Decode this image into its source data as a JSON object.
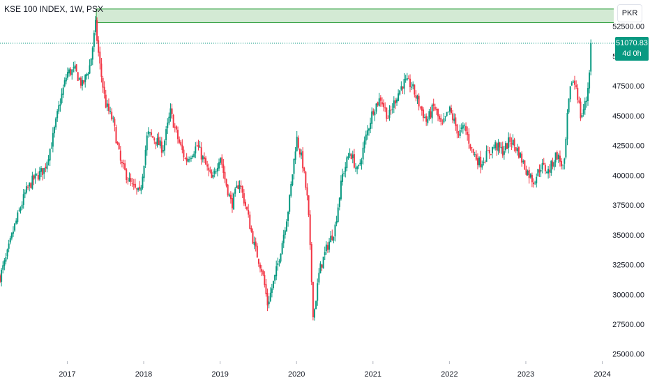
{
  "header": {
    "symbol_title": "KSE 100 INDEX, 1W, PSX"
  },
  "currency_button": {
    "label": "PKR"
  },
  "last_price": {
    "value": "51070.83",
    "countdown": "4d 0h",
    "raw": 51070.83
  },
  "colors": {
    "up": "#089981",
    "down": "#f23645",
    "zone_fill": "#d3ead4",
    "zone_stroke": "#2e9d3c",
    "badge": "#089981",
    "axis_text": "#131722",
    "price_line": "#089981"
  },
  "chart_data": {
    "type": "candlestick",
    "title": "KSE 100 INDEX, 1W, PSX",
    "xlabel": "",
    "ylabel": "",
    "ylim": [
      24400,
      54700
    ],
    "y_ticks": [
      25000,
      27500,
      30000,
      32500,
      35000,
      37500,
      40000,
      42500,
      45000,
      47500,
      50000,
      52500
    ],
    "y_tick_labels": [
      "25000.00",
      "27500.00",
      "30000.00",
      "32500.00",
      "35000.00",
      "37500.00",
      "40000.00",
      "42500.00",
      "45000.00",
      "47500.00",
      "50000.00",
      "52500.00"
    ],
    "x_ticks": [
      "2017",
      "2018",
      "2019",
      "2020",
      "2021",
      "2022",
      "2023",
      "2024"
    ],
    "x_tick_positions": [
      2017,
      2018,
      2019,
      2020,
      2021,
      2022,
      2023,
      2024
    ],
    "x_range": [
      2016.12,
      2024.15
    ],
    "grid": false,
    "resistance_zone": {
      "x_start": 2017.38,
      "low": 52800,
      "high": 53950
    },
    "last_price": 51070.83,
    "anchors": [
      [
        2016.12,
        31500
      ],
      [
        2016.2,
        33000
      ],
      [
        2016.3,
        35500
      ],
      [
        2016.45,
        38500
      ],
      [
        2016.55,
        39600
      ],
      [
        2016.7,
        40500
      ],
      [
        2016.8,
        42800
      ],
      [
        2016.9,
        46000
      ],
      [
        2017.0,
        48600
      ],
      [
        2017.1,
        48800
      ],
      [
        2017.2,
        47500
      ],
      [
        2017.3,
        49300
      ],
      [
        2017.37,
        52600
      ],
      [
        2017.42,
        49500
      ],
      [
        2017.5,
        46000
      ],
      [
        2017.6,
        44500
      ],
      [
        2017.7,
        41000
      ],
      [
        2017.85,
        39000
      ],
      [
        2017.95,
        38400
      ],
      [
        2018.05,
        43500
      ],
      [
        2018.15,
        43000
      ],
      [
        2018.25,
        42200
      ],
      [
        2018.35,
        45300
      ],
      [
        2018.45,
        43000
      ],
      [
        2018.55,
        41200
      ],
      [
        2018.7,
        42500
      ],
      [
        2018.8,
        41000
      ],
      [
        2018.9,
        39500
      ],
      [
        2019.0,
        41800
      ],
      [
        2019.05,
        40000
      ],
      [
        2019.15,
        37500
      ],
      [
        2019.25,
        39500
      ],
      [
        2019.35,
        37000
      ],
      [
        2019.45,
        34000
      ],
      [
        2019.55,
        32000
      ],
      [
        2019.62,
        29200
      ],
      [
        2019.72,
        31500
      ],
      [
        2019.8,
        34000
      ],
      [
        2019.9,
        37500
      ],
      [
        2020.0,
        43200
      ],
      [
        2020.08,
        41000
      ],
      [
        2020.15,
        37500
      ],
      [
        2020.22,
        28000
      ],
      [
        2020.3,
        32000
      ],
      [
        2020.4,
        34000
      ],
      [
        2020.5,
        35500
      ],
      [
        2020.6,
        40000
      ],
      [
        2020.7,
        42000
      ],
      [
        2020.8,
        40200
      ],
      [
        2020.9,
        43000
      ],
      [
        2021.0,
        45500
      ],
      [
        2021.1,
        46500
      ],
      [
        2021.2,
        44800
      ],
      [
        2021.3,
        46500
      ],
      [
        2021.4,
        47800
      ],
      [
        2021.5,
        47600
      ],
      [
        2021.6,
        46000
      ],
      [
        2021.7,
        44500
      ],
      [
        2021.8,
        45800
      ],
      [
        2021.9,
        44000
      ],
      [
        2022.0,
        45500
      ],
      [
        2022.12,
        43500
      ],
      [
        2022.2,
        44000
      ],
      [
        2022.3,
        42000
      ],
      [
        2022.4,
        41000
      ],
      [
        2022.5,
        41800
      ],
      [
        2022.6,
        42500
      ],
      [
        2022.7,
        42000
      ],
      [
        2022.8,
        43000
      ],
      [
        2022.9,
        42000
      ],
      [
        2023.0,
        40500
      ],
      [
        2023.1,
        39500
      ],
      [
        2023.2,
        40800
      ],
      [
        2023.3,
        40300
      ],
      [
        2023.4,
        41800
      ],
      [
        2023.5,
        40500
      ],
      [
        2023.55,
        45500
      ],
      [
        2023.6,
        48000
      ],
      [
        2023.66,
        47500
      ],
      [
        2023.72,
        44800
      ],
      [
        2023.8,
        46500
      ],
      [
        2023.86,
        51070.83
      ]
    ]
  }
}
